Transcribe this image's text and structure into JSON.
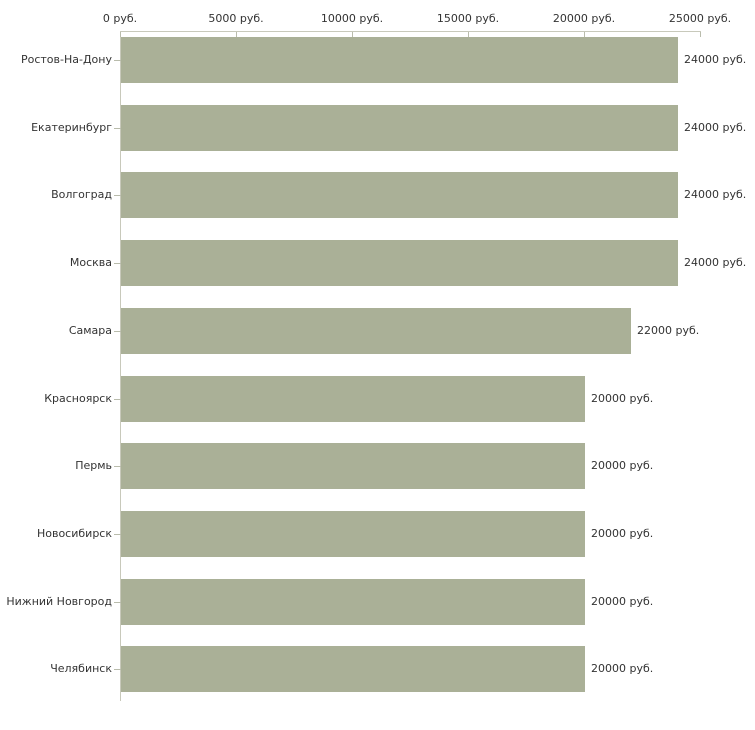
{
  "chart_data": {
    "type": "bar",
    "orientation": "horizontal",
    "title": "",
    "xlabel": "",
    "ylabel": "",
    "categories": [
      "Ростов-На-Дону",
      "Екатеринбург",
      "Волгоград",
      "Москва",
      "Самара",
      "Красноярск",
      "Пермь",
      "Новосибирск",
      "Нижний Новгород",
      "Челябинск"
    ],
    "values": [
      24000,
      24000,
      24000,
      24000,
      22000,
      20000,
      20000,
      20000,
      20000,
      20000
    ],
    "value_labels": [
      "24000 руб.",
      "24000 руб.",
      "24000 руб.",
      "24000 руб.",
      "22000 руб.",
      "20000 руб.",
      "20000 руб.",
      "20000 руб.",
      "20000 руб.",
      "20000 руб."
    ],
    "x_ticks": [
      0,
      5000,
      10000,
      15000,
      20000,
      25000
    ],
    "x_tick_labels": [
      "0 руб.",
      "5000 руб.",
      "10000 руб.",
      "15000 руб.",
      "20000 руб.",
      "25000 руб."
    ],
    "xlim": [
      0,
      25000
    ],
    "value_unit": "руб.",
    "grid": false,
    "legend": false,
    "colors": {
      "bar": "#aab097",
      "axis": "#c8c9bb",
      "tick": "#b9bcac",
      "text": "#333333",
      "background": "#ffffff"
    }
  }
}
